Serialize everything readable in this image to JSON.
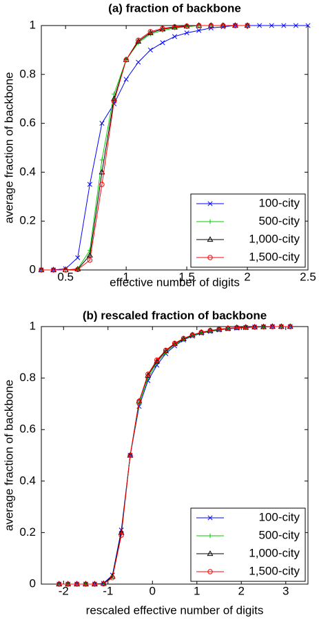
{
  "chart_data": [
    {
      "type": "line",
      "title": "(a) fraction of backbone",
      "xlabel": "effective number of digits",
      "ylabel": "average fraction of backbone",
      "xlim": [
        0.3,
        2.5
      ],
      "xticks": [
        0.5,
        1,
        1.5,
        2,
        2.5
      ],
      "ylim": [
        0,
        1
      ],
      "yticks": [
        0,
        0.2,
        0.4,
        0.6,
        0.8,
        1
      ],
      "legend": "lower right",
      "series": [
        {
          "name": "100-city",
          "color": "#0000ff",
          "marker": "x",
          "x": [
            0.3,
            0.4,
            0.5,
            0.6,
            0.7,
            0.8,
            0.9,
            1.0,
            1.1,
            1.2,
            1.3,
            1.4,
            1.5,
            1.6,
            1.7,
            1.8,
            1.9,
            2.0,
            2.1,
            2.2,
            2.3,
            2.4,
            2.5
          ],
          "values": [
            0,
            0,
            0.005,
            0.05,
            0.35,
            0.6,
            0.68,
            0.78,
            0.85,
            0.9,
            0.93,
            0.955,
            0.97,
            0.98,
            0.99,
            0.995,
            1,
            1,
            1,
            1,
            1,
            1,
            1
          ]
        },
        {
          "name": "500-city",
          "color": "#00cc00",
          "marker": "+",
          "x": [
            0.3,
            0.4,
            0.5,
            0.6,
            0.7,
            0.8,
            0.9,
            1.0,
            1.1,
            1.2,
            1.3,
            1.4,
            1.5,
            1.6,
            1.7,
            1.8,
            1.9,
            2.0
          ],
          "values": [
            0,
            0,
            0,
            0.005,
            0.08,
            0.45,
            0.72,
            0.86,
            0.93,
            0.965,
            0.98,
            0.99,
            0.995,
            1,
            1,
            1,
            1,
            1
          ]
        },
        {
          "name": "1,000-city",
          "color": "#000000",
          "marker": "triangle",
          "x": [
            0.3,
            0.4,
            0.5,
            0.6,
            0.7,
            0.8,
            0.9,
            1.0,
            1.1,
            1.2,
            1.3,
            1.4,
            1.5,
            1.6,
            1.7,
            1.8,
            1.9,
            2.0
          ],
          "values": [
            0,
            0,
            0,
            0.003,
            0.06,
            0.4,
            0.7,
            0.86,
            0.935,
            0.97,
            0.985,
            0.993,
            0.997,
            1,
            1,
            1,
            1,
            1
          ]
        },
        {
          "name": "1,500-city",
          "color": "#ff0000",
          "marker": "circle",
          "x": [
            0.3,
            0.4,
            0.5,
            0.6,
            0.7,
            0.8,
            0.9,
            1.0,
            1.1,
            1.2,
            1.3,
            1.4,
            1.5,
            1.6,
            1.7,
            1.8,
            1.9,
            2.0
          ],
          "values": [
            0,
            0,
            0,
            0.002,
            0.04,
            0.35,
            0.69,
            0.86,
            0.94,
            0.975,
            0.988,
            0.995,
            0.998,
            1,
            1,
            1,
            1,
            1
          ]
        }
      ]
    },
    {
      "type": "line",
      "title": "(b) rescaled fraction of backbone",
      "xlabel": "rescaled effective number of digits",
      "ylabel": "average fraction of backbone",
      "xlim": [
        -2.5,
        3.5
      ],
      "xticks": [
        -2,
        -1,
        0,
        1,
        2,
        3
      ],
      "ylim": [
        0,
        1
      ],
      "yticks": [
        0,
        0.2,
        0.4,
        0.6,
        0.8,
        1
      ],
      "legend": "lower right",
      "series": [
        {
          "name": "100-city",
          "color": "#0000ff",
          "marker": "x",
          "x": [
            -2.1,
            -1.9,
            -1.7,
            -1.5,
            -1.3,
            -1.1,
            -0.9,
            -0.7,
            -0.5,
            -0.3,
            -0.1,
            0.1,
            0.3,
            0.5,
            0.7,
            0.9,
            1.1,
            1.3,
            1.5,
            1.7,
            1.9,
            2.1,
            2.3,
            2.5,
            2.7,
            2.9,
            3.1
          ],
          "values": [
            0,
            0,
            0,
            0,
            0,
            0.003,
            0.035,
            0.21,
            0.5,
            0.69,
            0.79,
            0.85,
            0.895,
            0.925,
            0.948,
            0.963,
            0.974,
            0.981,
            0.987,
            0.991,
            0.994,
            0.996,
            0.998,
            0.999,
            1,
            1,
            1
          ]
        },
        {
          "name": "500-city",
          "color": "#00cc00",
          "marker": "+",
          "x": [
            -2.1,
            -1.9,
            -1.7,
            -1.5,
            -1.3,
            -1.1,
            -0.9,
            -0.7,
            -0.5,
            -0.3,
            -0.1,
            0.1,
            0.3,
            0.5,
            0.7,
            0.9,
            1.1,
            1.3,
            1.5,
            1.7,
            1.9,
            2.1,
            2.3,
            2.5,
            2.7,
            2.9,
            3.1
          ],
          "values": [
            0,
            0,
            0,
            0,
            0,
            0.002,
            0.03,
            0.2,
            0.5,
            0.7,
            0.8,
            0.86,
            0.9,
            0.93,
            0.95,
            0.965,
            0.975,
            0.982,
            0.988,
            0.992,
            0.995,
            0.997,
            0.998,
            0.999,
            1,
            1,
            1
          ]
        },
        {
          "name": "1,000-city",
          "color": "#000000",
          "marker": "triangle",
          "x": [
            -2.1,
            -1.9,
            -1.7,
            -1.5,
            -1.3,
            -1.1,
            -0.9,
            -0.7,
            -0.5,
            -0.3,
            -0.1,
            0.1,
            0.3,
            0.5,
            0.7,
            0.9,
            1.1,
            1.3,
            1.5,
            1.7,
            1.9,
            2.1,
            2.3,
            2.5,
            2.7,
            2.9,
            3.1
          ],
          "values": [
            0,
            0,
            0,
            0,
            0,
            0.002,
            0.03,
            0.2,
            0.5,
            0.71,
            0.81,
            0.865,
            0.905,
            0.933,
            0.952,
            0.967,
            0.977,
            0.984,
            0.989,
            0.993,
            0.996,
            0.997,
            0.998,
            0.999,
            1,
            1,
            1
          ]
        },
        {
          "name": "1,500-city",
          "color": "#ff0000",
          "marker": "circle",
          "x": [
            -2.1,
            -1.9,
            -1.7,
            -1.5,
            -1.3,
            -1.1,
            -0.9,
            -0.7,
            -0.5,
            -0.3,
            -0.1,
            0.1,
            0.3,
            0.5,
            0.7,
            0.9,
            1.1,
            1.3,
            1.5,
            1.7,
            1.9,
            2.1,
            2.3,
            2.5,
            2.7,
            2.9,
            3.1
          ],
          "values": [
            0,
            0,
            0,
            0,
            0,
            0.001,
            0.025,
            0.19,
            0.5,
            0.71,
            0.815,
            0.87,
            0.908,
            0.935,
            0.954,
            0.968,
            0.978,
            0.985,
            0.99,
            0.993,
            0.996,
            0.997,
            0.998,
            0.999,
            1,
            1,
            1
          ]
        }
      ]
    }
  ]
}
